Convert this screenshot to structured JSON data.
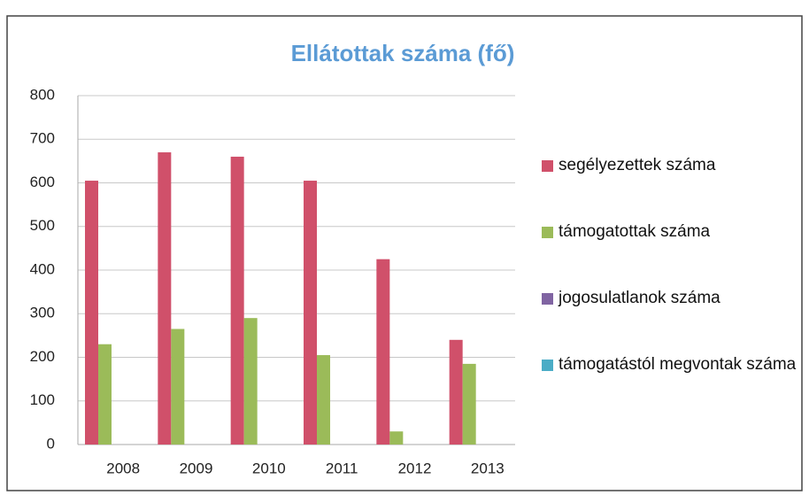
{
  "chart_data": {
    "type": "bar",
    "title": "Ellátottak száma (fő)",
    "categories": [
      "2008",
      "2009",
      "2010",
      "2011",
      "2012",
      "2013"
    ],
    "series": [
      {
        "name": "segélyezettek száma",
        "color": "#d0506a",
        "values": [
          605,
          670,
          660,
          605,
          425,
          240
        ]
      },
      {
        "name": "támogatottak száma",
        "color": "#9bbb59",
        "values": [
          230,
          265,
          290,
          205,
          30,
          185
        ]
      },
      {
        "name": "jogosulatlanok száma",
        "color": "#8064a2",
        "values": [
          0,
          0,
          0,
          0,
          0,
          0
        ]
      },
      {
        "name": "támogatástól megvontak száma",
        "color": "#4bacc6",
        "values": [
          0,
          0,
          0,
          0,
          0,
          0
        ]
      }
    ],
    "ylim": [
      0,
      800
    ],
    "yticks": [
      0,
      100,
      200,
      300,
      400,
      500,
      600,
      700,
      800
    ],
    "grid": true,
    "legend": "right"
  }
}
